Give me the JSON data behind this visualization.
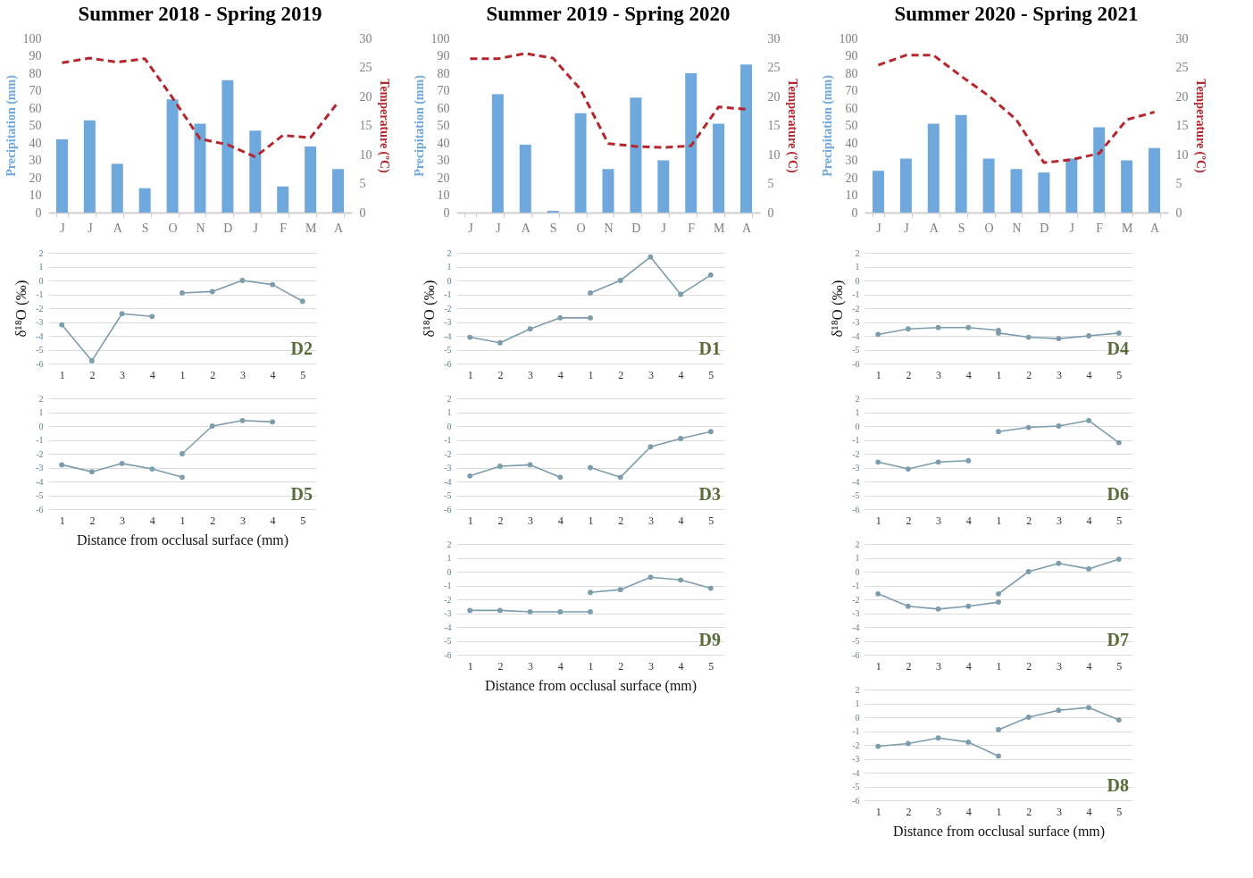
{
  "chart_data": [
    {
      "type": "bar",
      "title": "Summer 2018 - Spring 2019",
      "categories": [
        "J",
        "J",
        "A",
        "S",
        "O",
        "N",
        "D",
        "J",
        "F",
        "M",
        "A"
      ],
      "ylabel": "Precipitation (mm)",
      "y2label": "Temperature (ºC)",
      "ylim": [
        0,
        100
      ],
      "yticks": [
        0,
        10,
        20,
        30,
        40,
        50,
        60,
        70,
        80,
        90,
        100
      ],
      "y2lim": [
        0,
        30
      ],
      "y2ticks": [
        0,
        5,
        10,
        15,
        20,
        25,
        30
      ],
      "series": [
        {
          "color": "#6fa8dc",
          "values": [
            42,
            53,
            28,
            14,
            65,
            51,
            76,
            47,
            15,
            38,
            25
          ]
        },
        {
          "type": "line",
          "axis": "y2",
          "color": "#b5262d",
          "line_style": "dashed",
          "values": [
            25.8,
            26.6,
            25.9,
            26.5,
            19.8,
            12.7,
            11.7,
            9.6,
            13.3,
            12.9,
            19.0
          ]
        }
      ]
    },
    {
      "type": "line",
      "ylabel": "δ¹⁸O (‰)",
      "annotations": [
        "D2"
      ],
      "categories": [
        "1",
        "2",
        "3",
        "4",
        "1",
        "2",
        "3",
        "4",
        "5"
      ],
      "ylim": [
        -6,
        2
      ],
      "yticks": [
        -6,
        -5,
        -4,
        -3,
        -2,
        -1,
        0,
        1,
        2
      ],
      "grid": "y",
      "marker": "circle",
      "series": [
        {
          "color": "#7d9dad",
          "values": [
            -3.2,
            -5.8,
            -2.4,
            -2.6,
            null,
            null,
            null,
            null,
            null
          ]
        },
        {
          "color": "#7d9dad",
          "values": [
            null,
            null,
            null,
            null,
            -0.9,
            -0.8,
            0.0,
            -0.3,
            -1.5
          ]
        }
      ]
    },
    {
      "type": "line",
      "xlabel": "Distance from occlusal surface (mm)",
      "annotations": [
        "D5"
      ],
      "categories": [
        "1",
        "2",
        "3",
        "4",
        "1",
        "2",
        "3",
        "4",
        "5"
      ],
      "ylim": [
        -6,
        2
      ],
      "yticks": [
        -6,
        -5,
        -4,
        -3,
        -2,
        -1,
        0,
        1,
        2
      ],
      "grid": "y",
      "marker": "circle",
      "series": [
        {
          "color": "#7d9dad",
          "values": [
            -2.8,
            -3.3,
            -2.7,
            -3.1,
            -3.7,
            null,
            null,
            null,
            null
          ]
        },
        {
          "color": "#7d9dad",
          "values": [
            null,
            null,
            null,
            null,
            -2.0,
            0.0,
            0.4,
            0.3,
            null
          ]
        }
      ]
    },
    {
      "type": "bar",
      "title": "Summer 2019 - Spring 2020",
      "categories": [
        "J",
        "J",
        "A",
        "S",
        "O",
        "N",
        "D",
        "J",
        "F",
        "M",
        "A"
      ],
      "ylabel": "Precipitation (mm)",
      "y2label": "Temperature (ºC)",
      "ylim": [
        0,
        100
      ],
      "yticks": [
        0,
        10,
        20,
        30,
        40,
        50,
        60,
        70,
        80,
        90,
        100
      ],
      "y2lim": [
        0,
        30
      ],
      "y2ticks": [
        0,
        5,
        10,
        15,
        20,
        25,
        30
      ],
      "series": [
        {
          "color": "#6fa8dc",
          "values": [
            null,
            68,
            39,
            1,
            57,
            25,
            66,
            30,
            80,
            51,
            85
          ]
        },
        {
          "type": "line",
          "axis": "y2",
          "color": "#b5262d",
          "line_style": "dashed",
          "values": [
            26.5,
            26.5,
            27.4,
            26.6,
            21.2,
            11.9,
            11.4,
            11.2,
            11.5,
            18.2,
            17.8
          ]
        }
      ]
    },
    {
      "type": "line",
      "ylabel": "δ¹⁸O (‰)",
      "annotations": [
        "D1"
      ],
      "categories": [
        "1",
        "2",
        "3",
        "4",
        "1",
        "2",
        "3",
        "4",
        "5"
      ],
      "ylim": [
        -6,
        2
      ],
      "yticks": [
        -6,
        -5,
        -4,
        -3,
        -2,
        -1,
        0,
        1,
        2
      ],
      "grid": "y",
      "marker": "circle",
      "series": [
        {
          "color": "#7d9dad",
          "values": [
            -4.1,
            -4.5,
            -3.5,
            -2.7,
            -2.7,
            null,
            null,
            null,
            null
          ]
        },
        {
          "color": "#7d9dad",
          "values": [
            null,
            null,
            null,
            null,
            -0.9,
            0.0,
            1.7,
            -1.0,
            0.4
          ]
        }
      ]
    },
    {
      "type": "line",
      "annotations": [
        "D3"
      ],
      "categories": [
        "1",
        "2",
        "3",
        "4",
        "1",
        "2",
        "3",
        "4",
        "5"
      ],
      "ylim": [
        -6,
        2
      ],
      "yticks": [
        -6,
        -5,
        -4,
        -3,
        -2,
        -1,
        0,
        1,
        2
      ],
      "grid": "y",
      "marker": "circle",
      "series": [
        {
          "color": "#7d9dad",
          "values": [
            -3.6,
            -2.9,
            -2.8,
            -3.7,
            null,
            null,
            null,
            null,
            null
          ]
        },
        {
          "color": "#7d9dad",
          "values": [
            null,
            null,
            null,
            null,
            -3.0,
            -3.7,
            -1.5,
            -0.9,
            -0.4
          ]
        }
      ]
    },
    {
      "type": "line",
      "xlabel": "Distance from occlusal surface (mm)",
      "annotations": [
        "D9"
      ],
      "categories": [
        "1",
        "2",
        "3",
        "4",
        "1",
        "2",
        "3",
        "4",
        "5"
      ],
      "ylim": [
        -6,
        2
      ],
      "yticks": [
        -6,
        -5,
        -4,
        -3,
        -2,
        -1,
        0,
        1,
        2
      ],
      "grid": "y",
      "marker": "circle",
      "series": [
        {
          "color": "#7d9dad",
          "values": [
            -2.8,
            -2.8,
            -2.9,
            -2.9,
            -2.9,
            null,
            null,
            null,
            null
          ]
        },
        {
          "color": "#7d9dad",
          "values": [
            null,
            null,
            null,
            null,
            -1.5,
            -1.3,
            -0.4,
            -0.6,
            -1.2
          ]
        }
      ]
    },
    {
      "type": "bar",
      "title": "Summer 2020 - Spring 2021",
      "categories": [
        "J",
        "J",
        "A",
        "S",
        "O",
        "N",
        "D",
        "J",
        "F",
        "M",
        "A"
      ],
      "ylabel": "Precipitation (mm)",
      "y2label": "Temperature (ºC)",
      "ylim": [
        0,
        100
      ],
      "yticks": [
        0,
        10,
        20,
        30,
        40,
        50,
        60,
        70,
        80,
        90,
        100
      ],
      "y2lim": [
        0,
        30
      ],
      "y2ticks": [
        0,
        5,
        10,
        15,
        20,
        25,
        30
      ],
      "series": [
        {
          "color": "#6fa8dc",
          "values": [
            24,
            31,
            51,
            56,
            31,
            25,
            23,
            31,
            49,
            30,
            37
          ]
        },
        {
          "type": "line",
          "axis": "y2",
          "color": "#b5262d",
          "line_style": "dashed",
          "values": [
            25.4,
            27.1,
            27.1,
            23.5,
            20.1,
            16.0,
            8.6,
            9.1,
            10.2,
            16.0,
            17.3
          ]
        }
      ]
    },
    {
      "type": "line",
      "ylabel": "δ¹⁸O (‰)",
      "annotations": [
        "D4"
      ],
      "categories": [
        "1",
        "2",
        "3",
        "4",
        "1",
        "2",
        "3",
        "4",
        "5"
      ],
      "ylim": [
        -6,
        2
      ],
      "yticks": [
        -6,
        -5,
        -4,
        -3,
        -2,
        -1,
        0,
        1,
        2
      ],
      "grid": "y",
      "marker": "circle",
      "series": [
        {
          "color": "#7d9dad",
          "values": [
            -3.9,
            -3.5,
            -3.4,
            -3.4,
            -3.6,
            null,
            null,
            null,
            null
          ]
        },
        {
          "color": "#7d9dad",
          "values": [
            null,
            null,
            null,
            null,
            -3.8,
            -4.1,
            -4.2,
            -4.0,
            -3.8
          ]
        }
      ]
    },
    {
      "type": "line",
      "annotations": [
        "D6"
      ],
      "categories": [
        "1",
        "2",
        "3",
        "4",
        "1",
        "2",
        "3",
        "4",
        "5"
      ],
      "ylim": [
        -6,
        2
      ],
      "yticks": [
        -6,
        -5,
        -4,
        -3,
        -2,
        -1,
        0,
        1,
        2
      ],
      "grid": "y",
      "marker": "circle",
      "series": [
        {
          "color": "#7d9dad",
          "values": [
            -2.6,
            -3.1,
            -2.6,
            -2.5,
            null,
            null,
            null,
            null,
            null
          ]
        },
        {
          "color": "#7d9dad",
          "values": [
            null,
            null,
            null,
            null,
            -0.4,
            -0.1,
            0.0,
            0.4,
            -1.2
          ]
        }
      ]
    },
    {
      "type": "line",
      "annotations": [
        "D7"
      ],
      "categories": [
        "1",
        "2",
        "3",
        "4",
        "1",
        "2",
        "3",
        "4",
        "5"
      ],
      "ylim": [
        -6,
        2
      ],
      "yticks": [
        -6,
        -5,
        -4,
        -3,
        -2,
        -1,
        0,
        1,
        2
      ],
      "grid": "y",
      "marker": "circle",
      "series": [
        {
          "color": "#7d9dad",
          "values": [
            -1.6,
            -2.5,
            -2.7,
            -2.5,
            -2.2,
            null,
            null,
            null,
            null
          ]
        },
        {
          "color": "#7d9dad",
          "values": [
            null,
            null,
            null,
            null,
            -1.6,
            0.0,
            0.6,
            0.2,
            0.9
          ]
        }
      ]
    },
    {
      "type": "line",
      "xlabel": "Distance from occlusal surface (mm)",
      "annotations": [
        "D8"
      ],
      "categories": [
        "1",
        "2",
        "3",
        "4",
        "1",
        "2",
        "3",
        "4",
        "5"
      ],
      "ylim": [
        -6,
        2
      ],
      "yticks": [
        -6,
        -5,
        -4,
        -3,
        -2,
        -1,
        0,
        1,
        2
      ],
      "grid": "y",
      "marker": "circle",
      "series": [
        {
          "color": "#7d9dad",
          "values": [
            -2.1,
            -1.9,
            -1.5,
            -1.8,
            -2.8,
            null,
            null,
            null,
            null
          ]
        },
        {
          "color": "#7d9dad",
          "values": [
            null,
            null,
            null,
            null,
            -0.9,
            0.0,
            0.5,
            0.7,
            -0.2
          ]
        }
      ]
    }
  ]
}
